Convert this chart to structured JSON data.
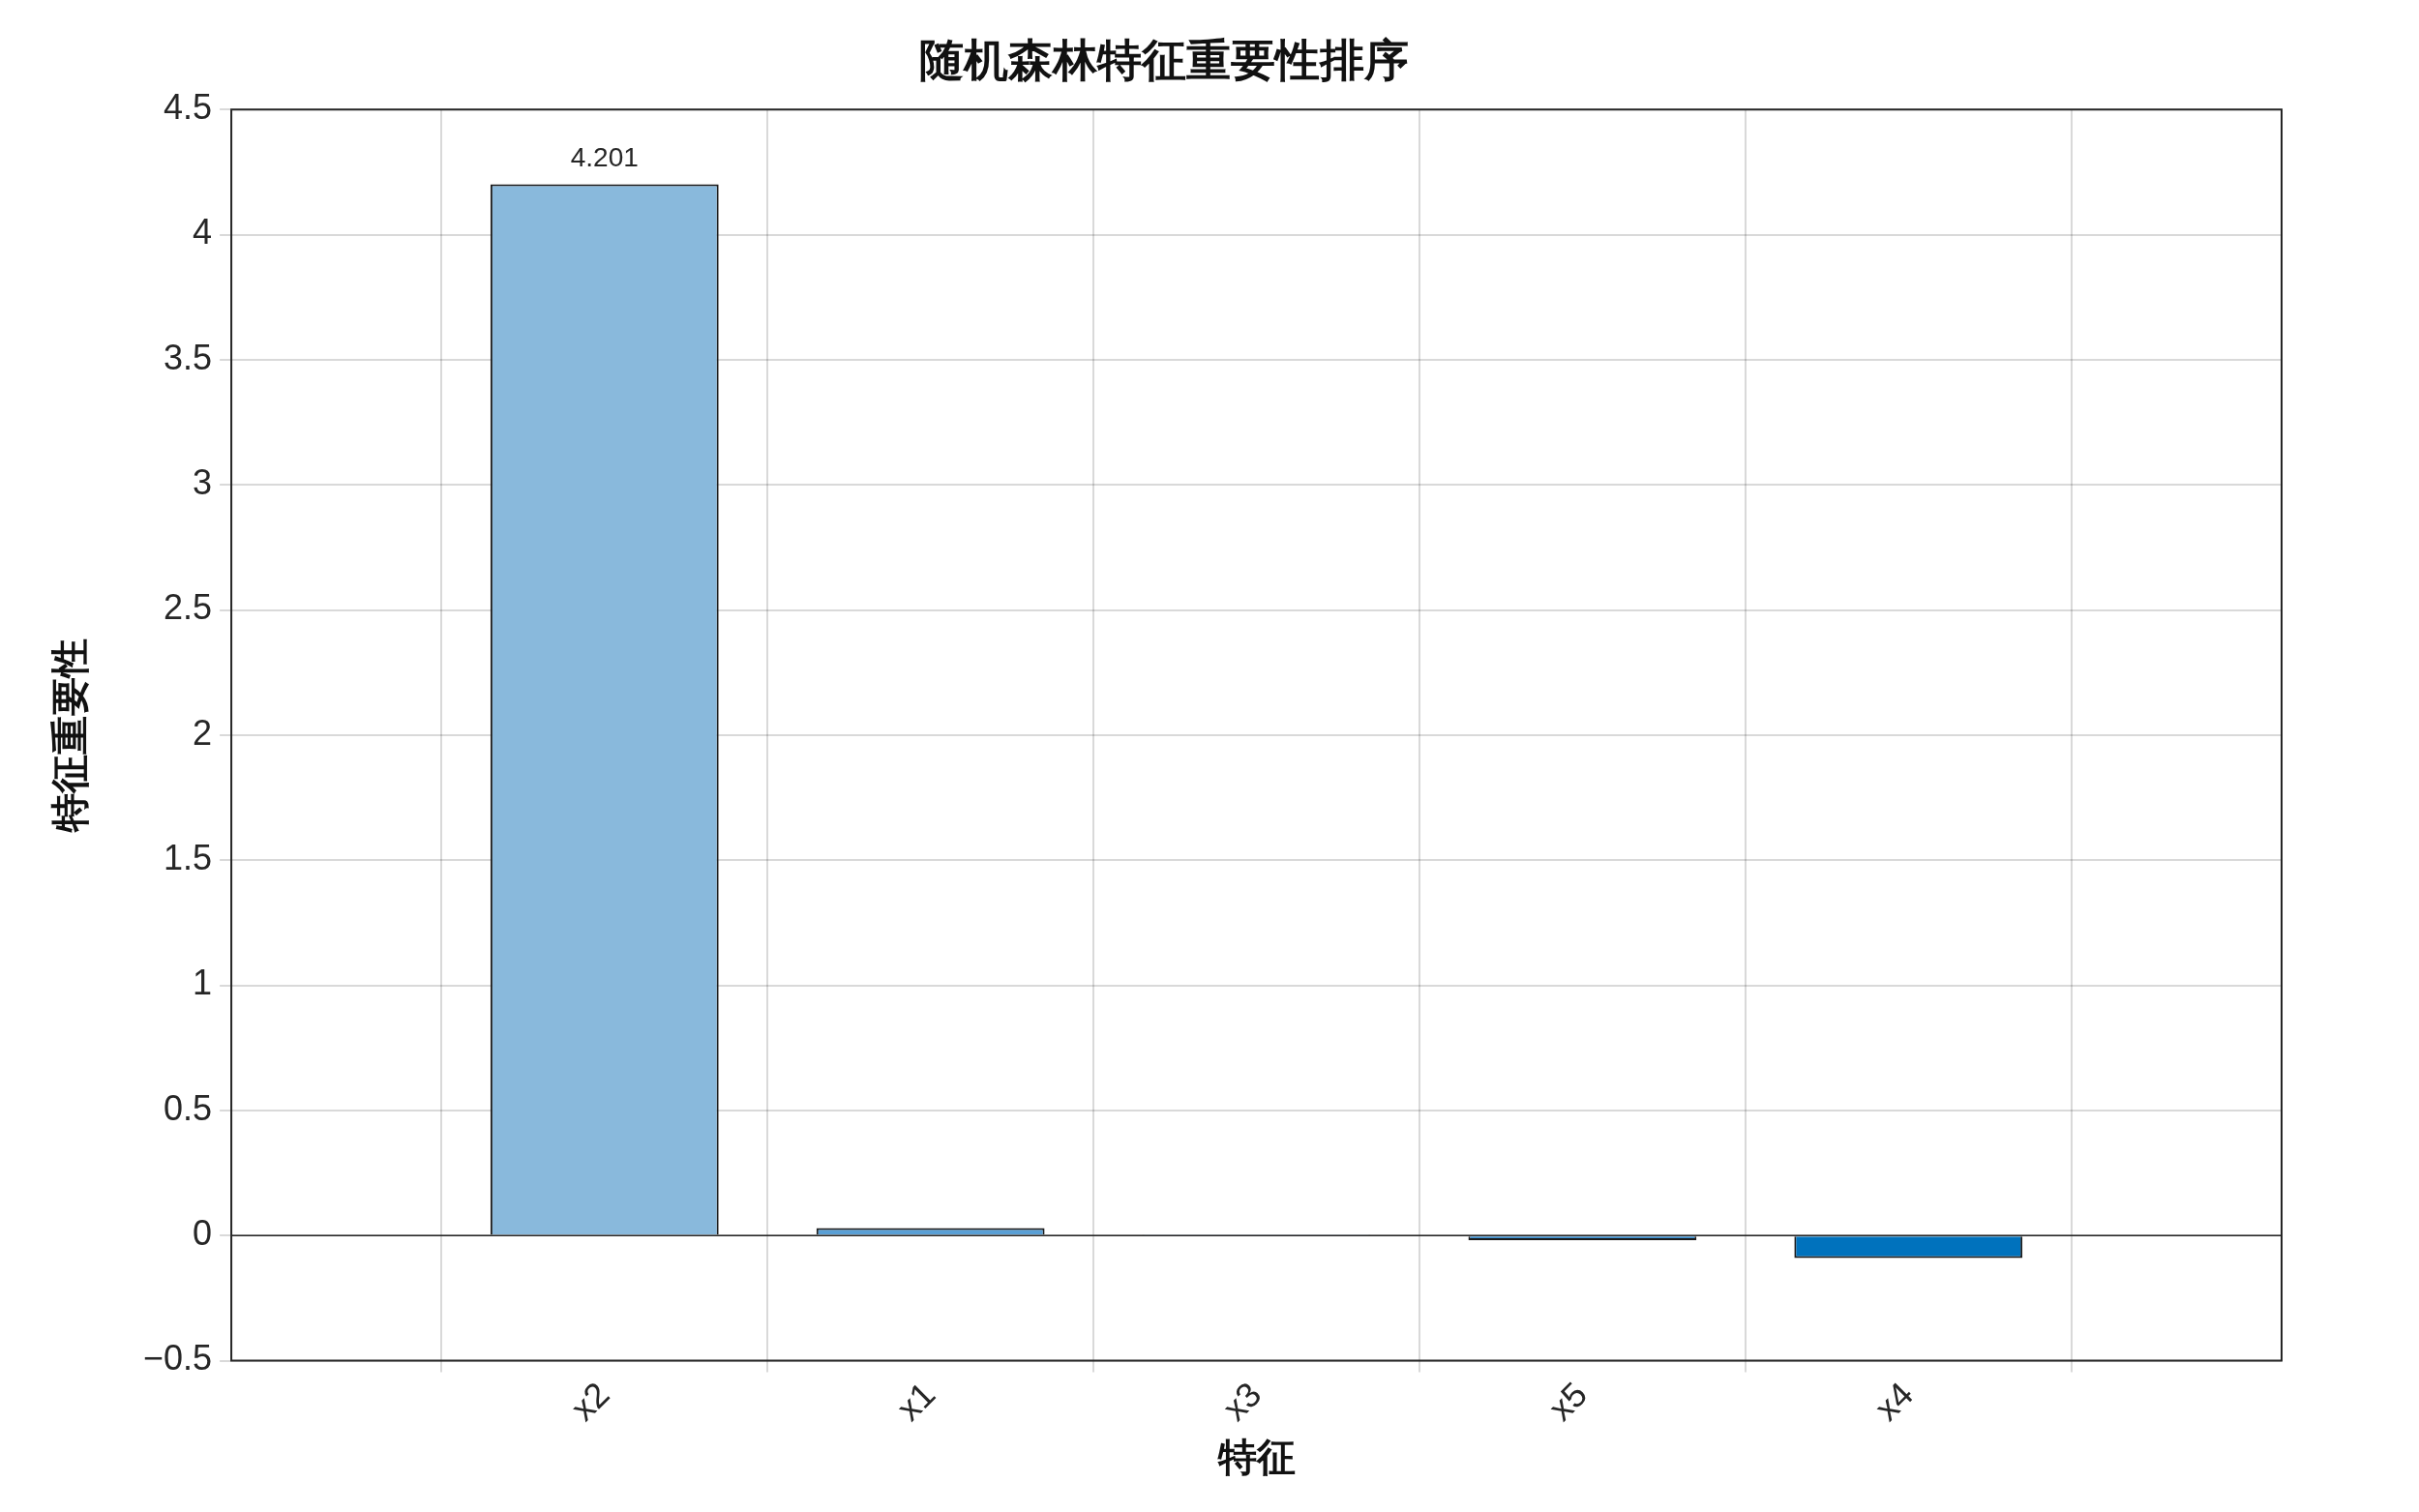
{
  "chart_data": {
    "type": "bar",
    "title": "随机森林特征重要性排序",
    "xlabel": "特征",
    "ylabel": "特征重要性",
    "categories": [
      "x2",
      "x1",
      "x3",
      "x5",
      "x4"
    ],
    "values": [
      4.201,
      0.03,
      0.005,
      -0.018,
      -0.09
    ],
    "colors": [
      "#89b9dc",
      "#5aa0d6",
      "#4796d2",
      "#2f88cb",
      "#0072bd"
    ],
    "value_labels": [
      "4.201",
      null,
      null,
      null,
      null
    ],
    "ylim": [
      -0.5,
      4.5
    ],
    "yticks": [
      -0.5,
      0,
      0.5,
      1,
      1.5,
      2,
      2.5,
      3,
      3.5,
      4,
      4.5
    ],
    "grid": true
  }
}
